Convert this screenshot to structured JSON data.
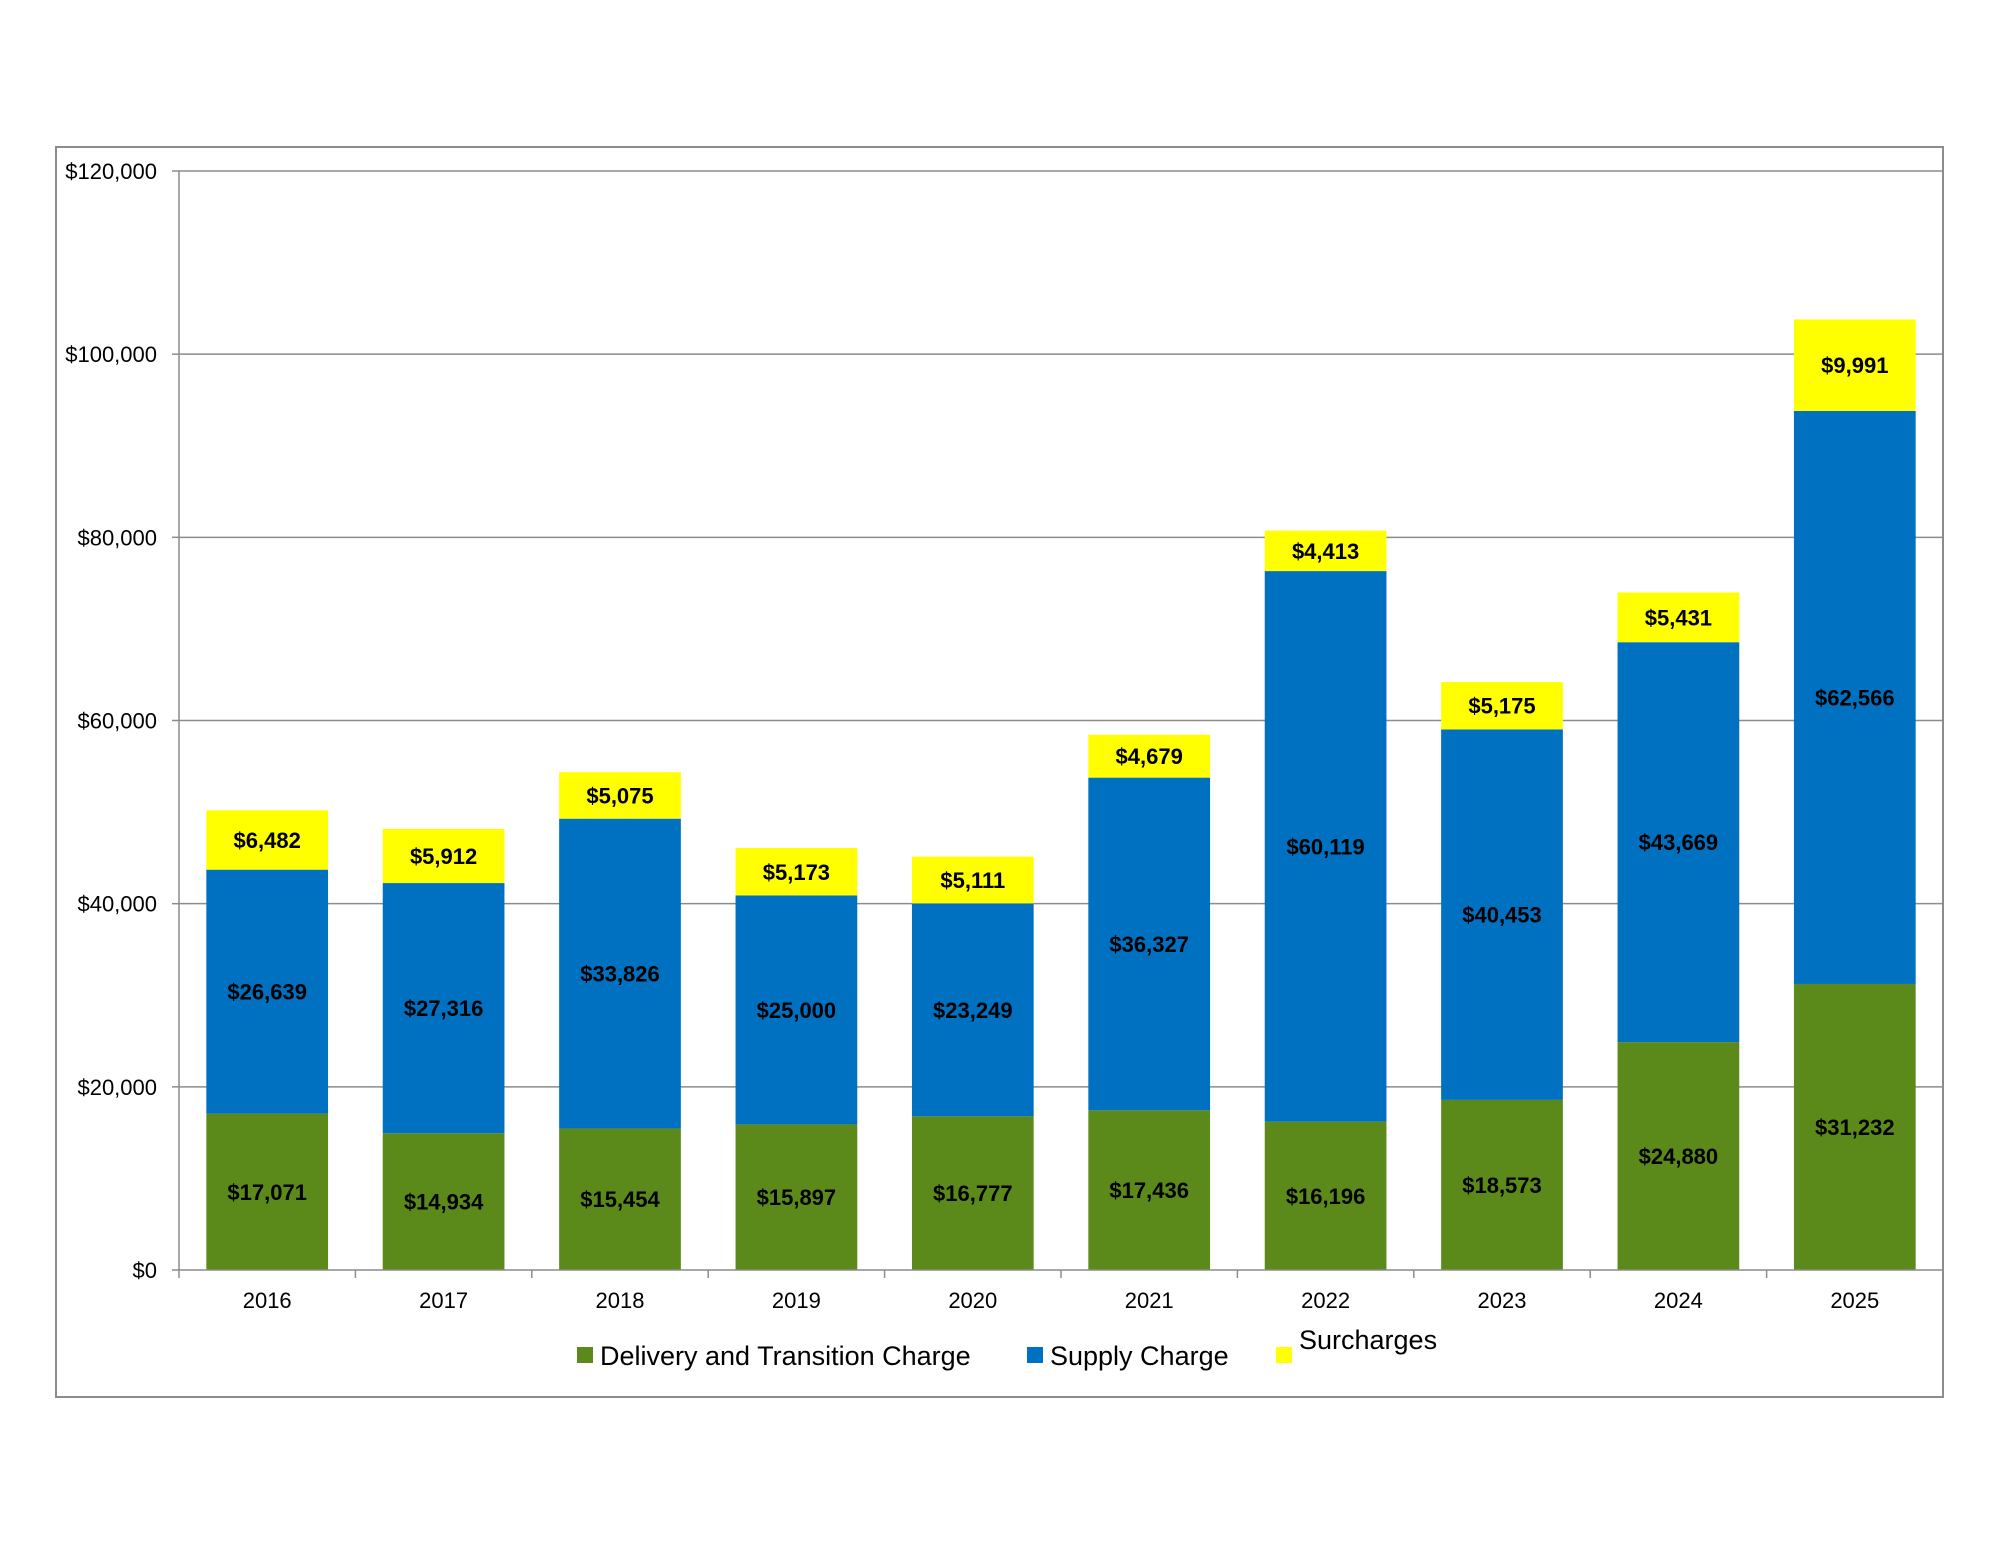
{
  "chart_data": {
    "type": "bar",
    "stacked": true,
    "title": "",
    "xlabel": "",
    "ylabel": "",
    "ylim": [
      0,
      120000
    ],
    "yticks": [
      0,
      20000,
      40000,
      60000,
      80000,
      100000,
      120000
    ],
    "ytick_labels": [
      "$0",
      "$20,000",
      "$40,000",
      "$60,000",
      "$80,000",
      "$100,000",
      "$120,000"
    ],
    "grid": true,
    "legend_position": "bottom",
    "categories": [
      "2016",
      "2017",
      "2018",
      "2019",
      "2020",
      "2021",
      "2022",
      "2023",
      "2024",
      "2025"
    ],
    "series": [
      {
        "name": "Delivery and Transition Charge",
        "color": "#5B8A1B",
        "values": [
          17071,
          14934,
          15454,
          15897,
          16777,
          17436,
          16196,
          18573,
          24880,
          31232
        ],
        "labels": [
          "$17,071",
          "$14,934",
          "$15,454",
          "$15,897",
          "$16,777",
          "$17,436",
          "$16,196",
          "$18,573",
          "$24,880",
          "$31,232"
        ]
      },
      {
        "name": "Supply Charge",
        "color": "#0070C0",
        "values": [
          26639,
          27316,
          33826,
          25000,
          23249,
          36327,
          60119,
          40453,
          43669,
          62566
        ],
        "labels": [
          "$26,639",
          "$27,316",
          "$33,826",
          "$25,000",
          "$23,249",
          "$36,327",
          "$60,119",
          "$40,453",
          "$43,669",
          "$62,566"
        ]
      },
      {
        "name": "Surcharges",
        "color": "#FFFF00",
        "values": [
          6482,
          5912,
          5075,
          5173,
          5111,
          4679,
          4413,
          5175,
          5431,
          9991
        ],
        "labels": [
          "$6,482",
          "$5,912",
          "$5,075",
          "$5,173",
          "$5,111",
          "$4,679",
          "$4,413",
          "$5,175",
          "$5,431",
          "$9,991"
        ]
      }
    ]
  }
}
